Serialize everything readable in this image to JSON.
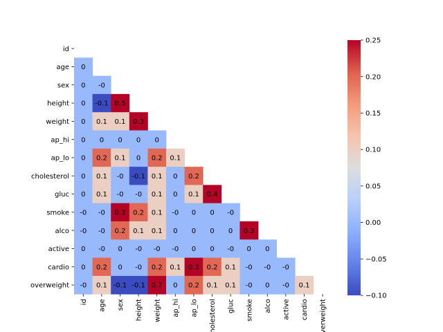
{
  "chart_data": {
    "type": "heatmap",
    "title": "",
    "xlabel": "",
    "ylabel": "",
    "mask": "upper-triangle-including-diagonal",
    "labels": [
      "id",
      "age",
      "sex",
      "height",
      "weight",
      "ap_hi",
      "ap_lo",
      "cholesterol",
      "gluc",
      "smoke",
      "alco",
      "active",
      "cardio",
      "overweight"
    ],
    "x_tick_labels_visible": [
      "id",
      "age",
      "sex",
      "height",
      "weight",
      "ap_hi",
      "ap_lo",
      "cholesterol",
      "gluc",
      "smoke",
      "alco",
      "active",
      "cardio",
      "overweight"
    ],
    "matrix": [
      [
        null,
        null,
        null,
        null,
        null,
        null,
        null,
        null,
        null,
        null,
        null,
        null,
        null,
        null
      ],
      [
        0,
        null,
        null,
        null,
        null,
        null,
        null,
        null,
        null,
        null,
        null,
        null,
        null,
        null
      ],
      [
        0,
        -0.0,
        null,
        null,
        null,
        null,
        null,
        null,
        null,
        null,
        null,
        null,
        null,
        null
      ],
      [
        0,
        -0.1,
        0.5,
        null,
        null,
        null,
        null,
        null,
        null,
        null,
        null,
        null,
        null,
        null
      ],
      [
        0,
        0.1,
        0.1,
        0.3,
        null,
        null,
        null,
        null,
        null,
        null,
        null,
        null,
        null,
        null
      ],
      [
        0,
        0,
        0,
        0,
        0,
        null,
        null,
        null,
        null,
        null,
        null,
        null,
        null,
        null
      ],
      [
        0,
        0.2,
        0.1,
        0,
        0.2,
        0.1,
        null,
        null,
        null,
        null,
        null,
        null,
        null,
        null
      ],
      [
        0,
        0.1,
        -0.0,
        -0.1,
        0.1,
        0,
        0.2,
        null,
        null,
        null,
        null,
        null,
        null,
        null
      ],
      [
        0,
        0.1,
        -0.0,
        -0.0,
        0.1,
        0,
        0.1,
        0.4,
        null,
        null,
        null,
        null,
        null,
        null
      ],
      [
        -0.0,
        -0.0,
        0.3,
        0.2,
        0.1,
        -0.0,
        0,
        0,
        -0.0,
        null,
        null,
        null,
        null,
        null
      ],
      [
        -0.0,
        -0.0,
        0.2,
        0.1,
        0.1,
        0,
        0,
        0,
        0,
        0.3,
        null,
        null,
        null,
        null
      ],
      [
        0,
        -0.0,
        0,
        -0.0,
        -0.0,
        -0.0,
        0,
        0,
        -0.0,
        0,
        0,
        null,
        null,
        null
      ],
      [
        0,
        0.2,
        0,
        -0.0,
        0.2,
        0.1,
        0.3,
        0.2,
        0.1,
        -0.0,
        -0.0,
        -0.0,
        null,
        null
      ],
      [
        -0.0,
        0.1,
        -0.1,
        -0.1,
        0.7,
        0,
        0.2,
        0.1,
        0.1,
        -0.0,
        0,
        -0.0,
        0.1,
        null
      ]
    ],
    "annotations": [
      [
        null,
        null,
        null,
        null,
        null,
        null,
        null,
        null,
        null,
        null,
        null,
        null,
        null,
        null
      ],
      [
        "0",
        null,
        null,
        null,
        null,
        null,
        null,
        null,
        null,
        null,
        null,
        null,
        null,
        null
      ],
      [
        "0",
        "-0",
        null,
        null,
        null,
        null,
        null,
        null,
        null,
        null,
        null,
        null,
        null,
        null
      ],
      [
        "0",
        "-0.1",
        "0.5",
        null,
        null,
        null,
        null,
        null,
        null,
        null,
        null,
        null,
        null,
        null
      ],
      [
        "0",
        "0.1",
        "0.1",
        "0.3",
        null,
        null,
        null,
        null,
        null,
        null,
        null,
        null,
        null,
        null
      ],
      [
        "0",
        "0",
        "0",
        "0",
        "0",
        null,
        null,
        null,
        null,
        null,
        null,
        null,
        null,
        null
      ],
      [
        "0",
        "0.2",
        "0.1",
        "0",
        "0.2",
        "0.1",
        null,
        null,
        null,
        null,
        null,
        null,
        null,
        null
      ],
      [
        "0",
        "0.1",
        "-0",
        "-0.1",
        "0.1",
        "0",
        "0.2",
        null,
        null,
        null,
        null,
        null,
        null,
        null
      ],
      [
        "0",
        "0.1",
        "-0",
        "-0",
        "0.1",
        "0",
        "0.1",
        "0.4",
        null,
        null,
        null,
        null,
        null,
        null
      ],
      [
        "-0",
        "-0",
        "0.3",
        "0.2",
        "0.1",
        "-0",
        "0",
        "0",
        "-0",
        null,
        null,
        null,
        null,
        null
      ],
      [
        "-0",
        "-0",
        "0.2",
        "0.1",
        "0.1",
        "0",
        "0",
        "0",
        "0",
        "0.3",
        null,
        null,
        null,
        null
      ],
      [
        "0",
        "-0",
        "0",
        "-0",
        "-0",
        "-0",
        "0",
        "0",
        "-0",
        "0",
        "0",
        null,
        null,
        null
      ],
      [
        "0",
        "0.2",
        "0",
        "-0",
        "0.2",
        "0.1",
        "0.3",
        "0.2",
        "0.1",
        "-0",
        "-0",
        "-0",
        null,
        null
      ],
      [
        "-0",
        "0.1",
        "-0.1",
        "-0.1",
        "0.7",
        "0",
        "0.2",
        "0.1",
        "0.1",
        "-0",
        "0",
        "-0",
        "0.1",
        null
      ]
    ],
    "vmin": -0.1,
    "vmax": 0.25,
    "colormap": "coolwarm",
    "colorbar": {
      "ticks": [
        -0.1,
        -0.05,
        0.0,
        0.05,
        0.1,
        0.15,
        0.2,
        0.25
      ],
      "tick_labels": [
        "−0.10",
        "−0.05",
        "0.00",
        "0.05",
        "0.10",
        "0.15",
        "0.20",
        "0.25"
      ]
    },
    "grid": false,
    "legend": "colorbar-right"
  }
}
